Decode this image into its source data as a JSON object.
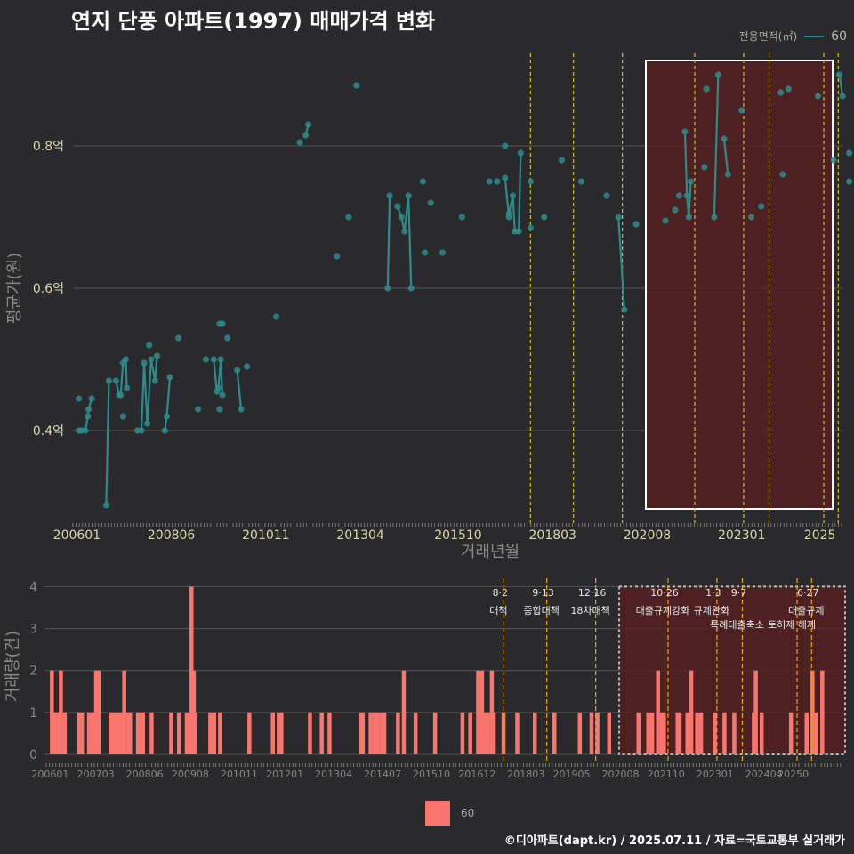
{
  "title": "연지 단풍 아파트(1997) 매매가격 변화",
  "legend": {
    "title": "전용면적(㎡)",
    "label": "60"
  },
  "legend_bottom": {
    "label": "60"
  },
  "caption": "©디아파트(dapt.kr) / 2025.07.11 / 자료=국토교통부 실거래가",
  "colors": {
    "line": "#2e8b8b",
    "bar": "#f8766d",
    "vline": "#d4c21a",
    "vline_bottom": "#f0a500",
    "highlight": "#5a1e1e"
  },
  "chart_data": [
    {
      "type": "line",
      "title": "연지 단풍 아파트(1997) 매매가격 변화",
      "xlabel": "거래년월",
      "ylabel": "평균가(원)",
      "x_ticks": [
        "200601",
        "200806",
        "201011",
        "201304",
        "201510",
        "201803",
        "202008",
        "202301",
        "2025"
      ],
      "y_ticks": [
        "0.4억",
        "0.6억",
        "0.8억"
      ],
      "y_tick_values": [
        0.4,
        0.6,
        0.8
      ],
      "ylim": [
        0.27,
        0.93
      ],
      "xlim": [
        2005.9,
        2025.6
      ],
      "series_name": "60",
      "points": [
        [
          2006.05,
          0.4
        ],
        [
          2006.05,
          0.445
        ],
        [
          2006.12,
          0.4
        ],
        [
          2006.22,
          0.4
        ],
        [
          2006.28,
          0.42
        ],
        [
          2006.3,
          0.43
        ],
        [
          2006.38,
          0.445
        ],
        [
          2006.75,
          0.295
        ],
        [
          2006.82,
          0.47
        ],
        [
          2007.0,
          0.47
        ],
        [
          2007.08,
          0.45
        ],
        [
          2007.12,
          0.45
        ],
        [
          2007.18,
          0.495
        ],
        [
          2007.25,
          0.5
        ],
        [
          2007.28,
          0.46
        ],
        [
          2007.18,
          0.42
        ],
        [
          2007.55,
          0.4
        ],
        [
          2007.65,
          0.4
        ],
        [
          2007.72,
          0.495
        ],
        [
          2007.8,
          0.41
        ],
        [
          2007.9,
          0.5
        ],
        [
          2008.0,
          0.47
        ],
        [
          2008.05,
          0.505
        ],
        [
          2007.85,
          0.52
        ],
        [
          2008.25,
          0.4
        ],
        [
          2008.3,
          0.42
        ],
        [
          2008.38,
          0.475
        ],
        [
          2008.6,
          0.53
        ],
        [
          2009.1,
          0.43
        ],
        [
          2009.3,
          0.5
        ],
        [
          2009.5,
          0.5
        ],
        [
          2009.58,
          0.455
        ],
        [
          2009.62,
          0.46
        ],
        [
          2009.68,
          0.5
        ],
        [
          2009.72,
          0.45
        ],
        [
          2009.65,
          0.55
        ],
        [
          2009.72,
          0.55
        ],
        [
          2009.85,
          0.53
        ],
        [
          2009.65,
          0.43
        ],
        [
          2010.1,
          0.485
        ],
        [
          2010.2,
          0.43
        ],
        [
          2010.35,
          0.49
        ],
        [
          2011.1,
          0.56
        ],
        [
          2011.7,
          0.805
        ],
        [
          2011.85,
          0.815
        ],
        [
          2011.92,
          0.83
        ],
        [
          2012.65,
          0.645
        ],
        [
          2012.95,
          0.7
        ],
        [
          2013.15,
          0.885
        ],
        [
          2013.95,
          0.6
        ],
        [
          2014.0,
          0.73
        ],
        [
          2014.2,
          0.715
        ],
        [
          2014.3,
          0.7
        ],
        [
          2014.38,
          0.68
        ],
        [
          2014.48,
          0.73
        ],
        [
          2014.55,
          0.6
        ],
        [
          2014.9,
          0.65
        ],
        [
          2014.85,
          0.75
        ],
        [
          2015.05,
          0.72
        ],
        [
          2015.35,
          0.65
        ],
        [
          2015.85,
          0.7
        ],
        [
          2016.55,
          0.75
        ],
        [
          2016.75,
          0.75
        ],
        [
          2016.95,
          0.8
        ],
        [
          2016.95,
          0.755
        ],
        [
          2017.05,
          0.7
        ],
        [
          2017.05,
          0.705
        ],
        [
          2017.15,
          0.73
        ],
        [
          2017.2,
          0.68
        ],
        [
          2017.3,
          0.68
        ],
        [
          2017.35,
          0.79
        ],
        [
          2017.6,
          0.75
        ],
        [
          2017.6,
          0.685
        ],
        [
          2017.95,
          0.7
        ],
        [
          2018.4,
          0.78
        ],
        [
          2018.9,
          0.75
        ],
        [
          2019.55,
          0.73
        ],
        [
          2019.85,
          0.7
        ],
        [
          2020.0,
          0.57
        ],
        [
          2020.3,
          0.69
        ],
        [
          2021.05,
          0.695
        ],
        [
          2021.3,
          0.71
        ],
        [
          2021.4,
          0.73
        ],
        [
          2021.55,
          0.82
        ],
        [
          2021.6,
          0.73
        ],
        [
          2021.65,
          0.7
        ],
        [
          2021.7,
          0.75
        ],
        [
          2022.05,
          0.77
        ],
        [
          2022.1,
          0.88
        ],
        [
          2022.3,
          0.7
        ],
        [
          2022.4,
          0.9
        ],
        [
          2022.55,
          0.81
        ],
        [
          2022.65,
          0.76
        ],
        [
          2023.0,
          0.85
        ],
        [
          2023.25,
          0.7
        ],
        [
          2023.5,
          0.715
        ],
        [
          2024.0,
          0.875
        ],
        [
          2024.05,
          0.76
        ],
        [
          2024.2,
          0.88
        ],
        [
          2024.95,
          0.87
        ],
        [
          2025.35,
          0.78
        ],
        [
          2025.5,
          0.9
        ],
        [
          2025.58,
          0.87
        ],
        [
          2025.75,
          0.75
        ],
        [
          2025.75,
          0.79
        ]
      ],
      "line_segments": [
        [
          [
            2006.05,
            0.4
          ],
          [
            2006.12,
            0.4
          ]
        ],
        [
          [
            2006.22,
            0.4
          ],
          [
            2006.28,
            0.42
          ],
          [
            2006.3,
            0.43
          ],
          [
            2006.38,
            0.445
          ]
        ],
        [
          [
            2006.75,
            0.295
          ],
          [
            2006.82,
            0.47
          ]
        ],
        [
          [
            2007.0,
            0.47
          ],
          [
            2007.08,
            0.45
          ],
          [
            2007.12,
            0.45
          ],
          [
            2007.18,
            0.495
          ]
        ],
        [
          [
            2007.25,
            0.5
          ],
          [
            2007.28,
            0.46
          ]
        ],
        [
          [
            2007.55,
            0.4
          ],
          [
            2007.65,
            0.4
          ],
          [
            2007.72,
            0.495
          ],
          [
            2007.8,
            0.41
          ],
          [
            2007.9,
            0.5
          ],
          [
            2008.0,
            0.47
          ],
          [
            2008.05,
            0.505
          ]
        ],
        [
          [
            2008.25,
            0.4
          ],
          [
            2008.3,
            0.42
          ],
          [
            2008.38,
            0.475
          ]
        ],
        [
          [
            2009.5,
            0.5
          ],
          [
            2009.58,
            0.455
          ],
          [
            2009.62,
            0.46
          ],
          [
            2009.68,
            0.5
          ],
          [
            2009.72,
            0.45
          ]
        ],
        [
          [
            2010.1,
            0.485
          ],
          [
            2010.2,
            0.43
          ]
        ],
        [
          [
            2011.85,
            0.815
          ],
          [
            2011.92,
            0.83
          ]
        ],
        [
          [
            2013.95,
            0.6
          ],
          [
            2014.0,
            0.73
          ]
        ],
        [
          [
            2014.2,
            0.715
          ],
          [
            2014.3,
            0.7
          ],
          [
            2014.38,
            0.68
          ],
          [
            2014.48,
            0.73
          ],
          [
            2014.55,
            0.6
          ]
        ],
        [
          [
            2016.95,
            0.755
          ],
          [
            2017.05,
            0.7
          ],
          [
            2017.05,
            0.705
          ],
          [
            2017.15,
            0.73
          ],
          [
            2017.2,
            0.68
          ],
          [
            2017.3,
            0.68
          ],
          [
            2017.35,
            0.79
          ]
        ],
        [
          [
            2019.85,
            0.7
          ],
          [
            2020.0,
            0.57
          ]
        ],
        [
          [
            2021.55,
            0.82
          ],
          [
            2021.6,
            0.73
          ],
          [
            2021.65,
            0.7
          ],
          [
            2021.7,
            0.75
          ]
        ],
        [
          [
            2022.3,
            0.7
          ],
          [
            2022.4,
            0.9
          ]
        ],
        [
          [
            2022.55,
            0.81
          ],
          [
            2022.65,
            0.76
          ]
        ],
        [
          [
            2025.5,
            0.9
          ],
          [
            2025.58,
            0.87
          ]
        ]
      ],
      "vlines": [
        2017.6,
        2018.7,
        2019.95,
        2021.8,
        2023.05,
        2023.7,
        2025.1,
        2025.47
      ],
      "highlight": {
        "x_range": [
          2020.55,
          2025.6
        ],
        "y_range": [
          0.29,
          0.92
        ]
      }
    },
    {
      "type": "bar",
      "ylabel": "거래량(건)",
      "x_ticks": [
        "200601",
        "200703",
        "200806",
        "200908",
        "201011",
        "201201",
        "201304",
        "201407",
        "201510",
        "201612",
        "201803",
        "201905",
        "202008",
        "202110",
        "202301",
        "202404",
        "20250"
      ],
      "y_ticks": [
        "0",
        "1",
        "2",
        "3",
        "4"
      ],
      "ylim": [
        0,
        4.2
      ],
      "xlim": [
        2005.9,
        2025.6
      ],
      "series_name": "60",
      "bars": [
        [
          2006.05,
          2
        ],
        [
          2006.12,
          1
        ],
        [
          2006.22,
          1
        ],
        [
          2006.28,
          2
        ],
        [
          2006.38,
          1
        ],
        [
          2006.75,
          1
        ],
        [
          2006.82,
          1
        ],
        [
          2007.0,
          1
        ],
        [
          2007.08,
          1
        ],
        [
          2007.12,
          1
        ],
        [
          2007.18,
          2
        ],
        [
          2007.25,
          2
        ],
        [
          2007.55,
          1
        ],
        [
          2007.65,
          1
        ],
        [
          2007.72,
          1
        ],
        [
          2007.8,
          1
        ],
        [
          2007.9,
          2
        ],
        [
          2008.0,
          1
        ],
        [
          2008.05,
          1
        ],
        [
          2008.25,
          1
        ],
        [
          2008.3,
          1
        ],
        [
          2008.38,
          1
        ],
        [
          2008.6,
          1
        ],
        [
          2009.1,
          1
        ],
        [
          2009.3,
          1
        ],
        [
          2009.5,
          1
        ],
        [
          2009.58,
          1
        ],
        [
          2009.62,
          4
        ],
        [
          2009.68,
          2
        ],
        [
          2009.72,
          1
        ],
        [
          2010.1,
          1
        ],
        [
          2010.2,
          1
        ],
        [
          2010.35,
          1
        ],
        [
          2011.1,
          1
        ],
        [
          2011.7,
          1
        ],
        [
          2011.85,
          1
        ],
        [
          2011.92,
          1
        ],
        [
          2012.65,
          1
        ],
        [
          2012.95,
          1
        ],
        [
          2013.15,
          1
        ],
        [
          2013.95,
          1
        ],
        [
          2014.0,
          1
        ],
        [
          2014.2,
          1
        ],
        [
          2014.3,
          1
        ],
        [
          2014.38,
          1
        ],
        [
          2014.48,
          1
        ],
        [
          2014.55,
          1
        ],
        [
          2014.9,
          1
        ],
        [
          2015.05,
          2
        ],
        [
          2015.35,
          1
        ],
        [
          2015.85,
          1
        ],
        [
          2016.55,
          1
        ],
        [
          2016.75,
          1
        ],
        [
          2016.95,
          2
        ],
        [
          2017.05,
          2
        ],
        [
          2017.15,
          1
        ],
        [
          2017.2,
          1
        ],
        [
          2017.3,
          2
        ],
        [
          2017.35,
          1
        ],
        [
          2017.6,
          1
        ],
        [
          2017.95,
          1
        ],
        [
          2018.4,
          1
        ],
        [
          2018.9,
          1
        ],
        [
          2019.55,
          1
        ],
        [
          2019.85,
          1
        ],
        [
          2020.0,
          1
        ],
        [
          2020.3,
          1
        ],
        [
          2021.05,
          1
        ],
        [
          2021.3,
          1
        ],
        [
          2021.4,
          1
        ],
        [
          2021.55,
          2
        ],
        [
          2021.65,
          1
        ],
        [
          2021.7,
          1
        ],
        [
          2022.05,
          1
        ],
        [
          2022.1,
          1
        ],
        [
          2022.3,
          1
        ],
        [
          2022.4,
          2
        ],
        [
          2022.55,
          1
        ],
        [
          2022.65,
          1
        ],
        [
          2023.0,
          1
        ],
        [
          2023.25,
          1
        ],
        [
          2023.5,
          1
        ],
        [
          2024.0,
          1
        ],
        [
          2024.05,
          2
        ],
        [
          2024.2,
          1
        ],
        [
          2024.95,
          1
        ],
        [
          2025.35,
          1
        ],
        [
          2025.5,
          2
        ],
        [
          2025.58,
          1
        ],
        [
          2025.75,
          2
        ]
      ],
      "vlines": [
        2017.6,
        2018.7,
        2019.95,
        2021.8,
        2023.05,
        2023.7,
        2025.1,
        2025.47
      ],
      "highlight": {
        "x_range": [
          2020.55,
          2025.6
        ],
        "y_range": [
          0,
          4.0
        ]
      },
      "annotations": [
        {
          "x": 2017.6,
          "date": "8·2",
          "label": "대책"
        },
        {
          "x": 2018.7,
          "date": "9·13",
          "label": "종합대책"
        },
        {
          "x": 2019.95,
          "date": "12·16",
          "label": "18차대책"
        },
        {
          "x": 2021.8,
          "date": "10·26",
          "label": "대출규제강화"
        },
        {
          "x": 2023.05,
          "date": "1·3",
          "label": "규제완화"
        },
        {
          "x": 2023.7,
          "date": "9·7",
          "label": "특례대출축소"
        },
        {
          "x": 2025.1,
          "date": "",
          "label": "토허제 해제"
        },
        {
          "x": 2025.47,
          "date": "6·27",
          "label": "대출규제"
        }
      ]
    }
  ]
}
